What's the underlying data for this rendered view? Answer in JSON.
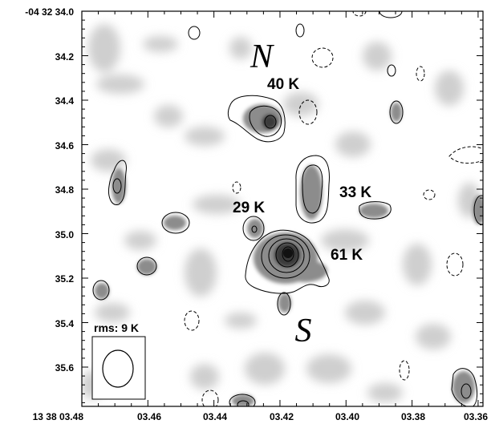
{
  "y_tick_labels": [
    "-04 32 34.0",
    "34.2",
    "34.4",
    "34.6",
    "34.8",
    "35.0",
    "35.2",
    "35.4",
    "35.6"
  ],
  "x_tick_labels": [
    "13 38 03.48",
    "03.46",
    "03.44",
    "03.42",
    "03.40",
    "03.38",
    "03.36"
  ],
  "annotations": {
    "north": "N",
    "south": "S",
    "temp_north": "40 K",
    "temp_east": "33 K",
    "temp_west": "29 K",
    "temp_center": "61 K",
    "rms": "rms: 9 K"
  },
  "colors": {
    "frame": "#000000",
    "background": "#ffffff",
    "emission": "#9a9a9a"
  }
}
